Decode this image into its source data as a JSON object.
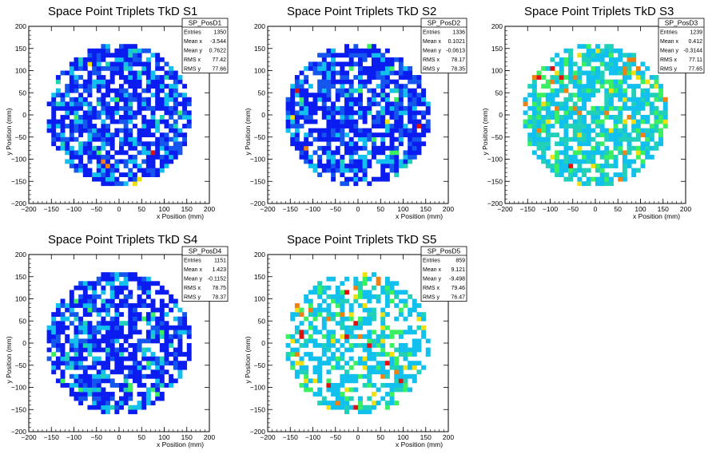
{
  "palette": [
    "#0a1cf0",
    "#1456ee",
    "#12c0ee",
    "#20d0b8",
    "#3af060",
    "#f0e010",
    "#f08010",
    "#e01010"
  ],
  "chart_data": [
    {
      "type": "heatmap",
      "title": "Space Point Triplets TkD S1",
      "xlabel": "x Position (mm)",
      "ylabel": "y Position (mm)",
      "xlim": [
        -200,
        200
      ],
      "ylim": [
        -200,
        200
      ],
      "xticks": [
        "−200",
        "−150",
        "−100",
        "−50",
        "0",
        "50",
        "100",
        "150",
        "200"
      ],
      "yticks": [
        "−200",
        "−150",
        "−100",
        "−50",
        "0",
        "50",
        "100",
        "150",
        "200"
      ],
      "bin_width_mm": 10,
      "disc_radius_mm": 160,
      "seed": 11,
      "level_weights": [
        0.55,
        0.25,
        0.15,
        0.03,
        0.01,
        0.005,
        0.003,
        0.002
      ],
      "fill_prob": 0.75,
      "stats": {
        "name": "SP_PosD1",
        "rows": [
          {
            "label": "Entries",
            "value": "1350"
          },
          {
            "label": "Mean x",
            "value": "-3.544"
          },
          {
            "label": "Mean y",
            "value": "0.7622"
          },
          {
            "label": "RMS x",
            "value": "77.42"
          },
          {
            "label": "RMS y",
            "value": "77.66"
          }
        ]
      }
    },
    {
      "type": "heatmap",
      "title": "Space Point Triplets TkD S2",
      "xlabel": "x Position (mm)",
      "ylabel": "y Position (mm)",
      "xlim": [
        -200,
        200
      ],
      "ylim": [
        -200,
        200
      ],
      "xticks": [
        "−200",
        "−150",
        "−100",
        "−50",
        "0",
        "50",
        "100",
        "150",
        "200"
      ],
      "yticks": [
        "−200",
        "−150",
        "−100",
        "−50",
        "0",
        "50",
        "100",
        "150",
        "200"
      ],
      "bin_width_mm": 10,
      "disc_radius_mm": 160,
      "seed": 23,
      "level_weights": [
        0.55,
        0.25,
        0.15,
        0.03,
        0.01,
        0.005,
        0.003,
        0.002
      ],
      "fill_prob": 0.75,
      "stats": {
        "name": "SP_PosD2",
        "rows": [
          {
            "label": "Entries",
            "value": "1336"
          },
          {
            "label": "Mean x",
            "value": "0.1021"
          },
          {
            "label": "Mean y",
            "value": "-0.0613"
          },
          {
            "label": "RMS x",
            "value": "78.17"
          },
          {
            "label": "RMS y",
            "value": "78.35"
          }
        ]
      }
    },
    {
      "type": "heatmap",
      "title": "Space Point Triplets TkD S3",
      "xlabel": "x Position (mm)",
      "ylabel": "y Position (mm)",
      "xlim": [
        -200,
        200
      ],
      "ylim": [
        -200,
        200
      ],
      "xticks": [
        "−200",
        "−150",
        "−100",
        "−50",
        "0",
        "50",
        "100",
        "150",
        "200"
      ],
      "yticks": [
        "−200",
        "−150",
        "−100",
        "−50",
        "0",
        "50",
        "100",
        "150",
        "200"
      ],
      "bin_width_mm": 10,
      "disc_radius_mm": 160,
      "seed": 37,
      "level_weights": [
        0.0,
        0.0,
        0.45,
        0.3,
        0.17,
        0.04,
        0.03,
        0.01
      ],
      "fill_prob": 0.72,
      "stats": {
        "name": "SP_PosD3",
        "rows": [
          {
            "label": "Entries",
            "value": "1239"
          },
          {
            "label": "Mean x",
            "value": "0.412"
          },
          {
            "label": "Mean y",
            "value": "-0.3144"
          },
          {
            "label": "RMS x",
            "value": "77.11"
          },
          {
            "label": "RMS y",
            "value": "77.65"
          }
        ]
      }
    },
    {
      "type": "heatmap",
      "title": "Space Point Triplets TkD S4",
      "xlabel": "x Position (mm)",
      "ylabel": "y Position (mm)",
      "xlim": [
        -200,
        200
      ],
      "ylim": [
        -200,
        200
      ],
      "xticks": [
        "−200",
        "−150",
        "−100",
        "−50",
        "0",
        "50",
        "100",
        "150",
        "200"
      ],
      "yticks": [
        "−200",
        "−150",
        "−100",
        "−50",
        "0",
        "50",
        "100",
        "150",
        "200"
      ],
      "bin_width_mm": 10,
      "disc_radius_mm": 160,
      "seed": 51,
      "level_weights": [
        0.6,
        0.18,
        0.15,
        0.04,
        0.02,
        0.005,
        0.003,
        0.002
      ],
      "fill_prob": 0.72,
      "stats": {
        "name": "SP_PosD4",
        "rows": [
          {
            "label": "Entries",
            "value": "1151"
          },
          {
            "label": "Mean x",
            "value": "1.423"
          },
          {
            "label": "Mean y",
            "value": "-0.1152"
          },
          {
            "label": "RMS x",
            "value": "78.75"
          },
          {
            "label": "RMS y",
            "value": "78.37"
          }
        ]
      }
    },
    {
      "type": "heatmap",
      "title": "Space Point Triplets TkD S5",
      "xlabel": "x Position (mm)",
      "ylabel": "y Position (mm)",
      "xlim": [
        -200,
        200
      ],
      "ylim": [
        -200,
        200
      ],
      "xticks": [
        "−200",
        "−150",
        "−100",
        "−50",
        "0",
        "50",
        "100",
        "150",
        "200"
      ],
      "yticks": [
        "−200",
        "−150",
        "−100",
        "−50",
        "0",
        "50",
        "100",
        "150",
        "200"
      ],
      "bin_width_mm": 10,
      "disc_radius_mm": 160,
      "seed": 67,
      "level_weights": [
        0.0,
        0.0,
        0.62,
        0.14,
        0.14,
        0.05,
        0.03,
        0.02
      ],
      "fill_prob": 0.55,
      "stats": {
        "name": "SP_PosD5",
        "rows": [
          {
            "label": "Entries",
            "value": "859"
          },
          {
            "label": "Mean x",
            "value": "9.121"
          },
          {
            "label": "Mean y",
            "value": "-9.498"
          },
          {
            "label": "RMS x",
            "value": "79.46"
          },
          {
            "label": "RMS y",
            "value": "76.47"
          }
        ]
      }
    }
  ]
}
